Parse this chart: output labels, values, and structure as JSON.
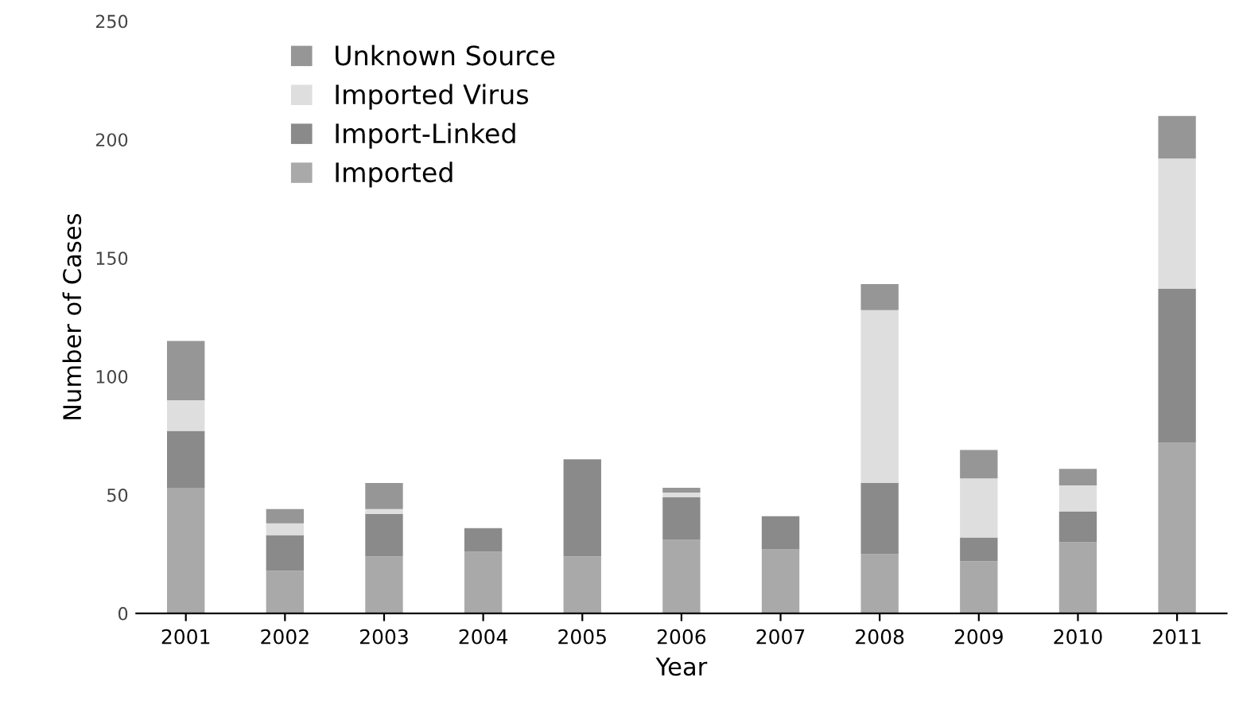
{
  "chart_data": {
    "type": "bar",
    "stacked": true,
    "xlabel": "Year",
    "ylabel": "Number of Cases",
    "categories": [
      "2001",
      "2002",
      "2003",
      "2004",
      "2005",
      "2006",
      "2007",
      "2008",
      "2009",
      "2010",
      "2011"
    ],
    "series": [
      {
        "name": "Imported",
        "color": "#a9a9a9",
        "values": [
          53,
          18,
          24,
          26,
          24,
          31,
          27,
          25,
          22,
          30,
          72
        ]
      },
      {
        "name": "Import-Linked",
        "color": "#8a8a8a",
        "values": [
          24,
          15,
          18,
          10,
          41,
          18,
          14,
          30,
          10,
          13,
          65
        ]
      },
      {
        "name": "Imported Virus",
        "color": "#dedede",
        "values": [
          13,
          5,
          2,
          null,
          null,
          2,
          null,
          73,
          25,
          11,
          55
        ]
      },
      {
        "name": "Unknown Source",
        "color": "#969696",
        "values": [
          25,
          6,
          11,
          null,
          null,
          2,
          null,
          11,
          12,
          7,
          18
        ]
      }
    ],
    "ylim": [
      0,
      250
    ],
    "yticks": [
      0,
      50,
      100,
      150,
      200,
      250
    ],
    "grid": false,
    "legend": "top left"
  }
}
